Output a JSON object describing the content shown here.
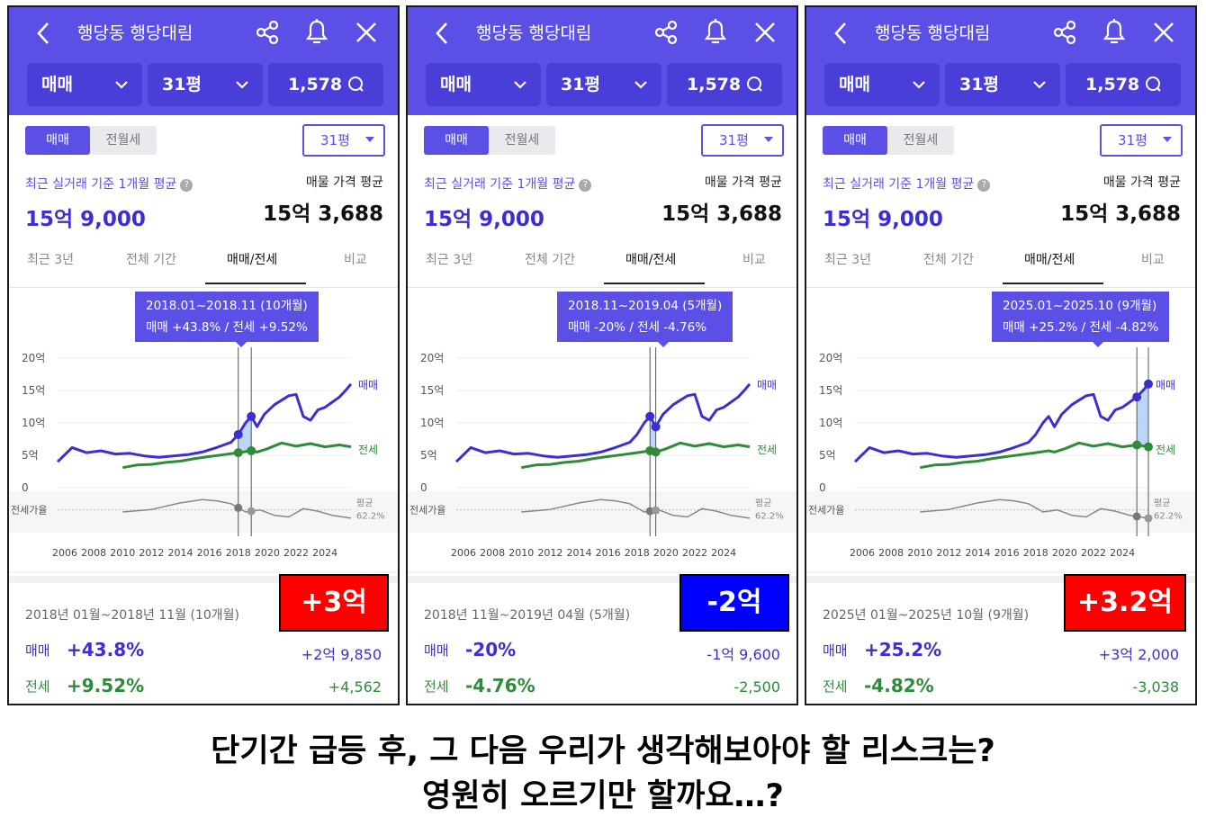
{
  "common": {
    "title": "행당동 행당대림",
    "deal_type": "매매",
    "size": "31평",
    "listing_count": "1,578",
    "seg_sale": "매매",
    "seg_rent": "전월세",
    "size_select": "31평",
    "recent_label": "최근 실거래 기준 1개월 평균",
    "recent_value": "15억 9,000",
    "listing_label": "매물 가격 평균",
    "listing_value": "15억 3,688",
    "tabs": [
      "최근 3년",
      "전체 기간",
      "매매/전세",
      "비교"
    ],
    "y_ticks": [
      "20억",
      "15억",
      "10억",
      "5억",
      "0"
    ],
    "x_ticks": [
      "2006",
      "2008",
      "2010",
      "2012",
      "2014",
      "2016",
      "2018",
      "2020",
      "2022",
      "2024"
    ],
    "series_sale": "매매",
    "series_jeonse": "전세",
    "ratio_label": "전세가율",
    "avg_label": "평균",
    "avg_value": "62.2%",
    "sale_label": "매매",
    "jeonse_label": "전세",
    "help_icon": "?"
  },
  "panels": [
    {
      "tooltip_line1": "2018.01~2018.11 (10개월)",
      "tooltip_line2": "매매 +43.8%  /  전세 +9.52%",
      "period": "2018년 01월~2018년 11월 (10개월)",
      "sale_pct": "+43.8%",
      "sale_amt": "+2억 9,850",
      "jeonse_pct": "+9.52%",
      "jeonse_amt": "+4,562",
      "badge": "+3억",
      "badge_color": "#ff0000"
    },
    {
      "tooltip_line1": "2018.11~2019.04 (5개월)",
      "tooltip_line2": "매매 -20%  /  전세 -4.76%",
      "period": "2018년 11월~2019년 04월 (5개월)",
      "sale_pct": "-20%",
      "sale_amt": "-1억 9,600",
      "jeonse_pct": "-4.76%",
      "jeonse_amt": "-2,500",
      "badge": "-2억",
      "badge_color": "#0000ff"
    },
    {
      "tooltip_line1": "2025.01~2025.10 (9개월)",
      "tooltip_line2": "매매 +25.2%  /  전세 -4.82%",
      "period": "2025년 01월~2025년 10월 (9개월)",
      "sale_pct": "+25.2%",
      "sale_amt": "+3억 2,000",
      "jeonse_pct": "-4.82%",
      "jeonse_amt": "-3,038",
      "badge": "+3.2억",
      "badge_color": "#ff0000"
    }
  ],
  "bottom": {
    "line1": "단기간 급등 후, 그 다음 우리가 생각해보아야 할 리스크는?",
    "line2": "영원히 오르기만 할까요…?"
  },
  "chart_data": {
    "type": "line",
    "x_unit": "year",
    "y_unit": "억",
    "ylim": [
      0,
      20
    ],
    "series": [
      {
        "name": "매매",
        "color": "#3b2fd2",
        "points": [
          [
            2005.5,
            4.0
          ],
          [
            2006.5,
            6.2
          ],
          [
            2007.5,
            5.4
          ],
          [
            2008.5,
            5.7
          ],
          [
            2009.5,
            5.2
          ],
          [
            2010.5,
            5.3
          ],
          [
            2011.5,
            4.9
          ],
          [
            2012.5,
            4.7
          ],
          [
            2013.5,
            4.9
          ],
          [
            2014.5,
            5.1
          ],
          [
            2015.5,
            5.5
          ],
          [
            2016.5,
            6.2
          ],
          [
            2017.5,
            7.0
          ],
          [
            2018.0,
            8.2
          ],
          [
            2018.5,
            10.0
          ],
          [
            2018.9,
            11.0
          ],
          [
            2019.3,
            9.4
          ],
          [
            2019.8,
            11.3
          ],
          [
            2020.5,
            12.8
          ],
          [
            2021.5,
            14.2
          ],
          [
            2022.0,
            14.4
          ],
          [
            2022.5,
            11.0
          ],
          [
            2023.0,
            10.4
          ],
          [
            2023.5,
            12.0
          ],
          [
            2024.0,
            12.4
          ],
          [
            2024.5,
            13.2
          ],
          [
            2025.0,
            14.0
          ],
          [
            2025.5,
            15.2
          ],
          [
            2025.8,
            16.0
          ]
        ]
      },
      {
        "name": "전세",
        "color": "#2f8a3a",
        "points": [
          [
            2010.0,
            3.1
          ],
          [
            2011.0,
            3.5
          ],
          [
            2012.0,
            3.6
          ],
          [
            2013.0,
            3.9
          ],
          [
            2014.0,
            4.1
          ],
          [
            2015.0,
            4.5
          ],
          [
            2016.0,
            4.8
          ],
          [
            2017.0,
            5.1
          ],
          [
            2018.0,
            5.4
          ],
          [
            2018.9,
            5.7
          ],
          [
            2019.3,
            5.5
          ],
          [
            2020.0,
            6.0
          ],
          [
            2021.0,
            6.9
          ],
          [
            2022.0,
            6.4
          ],
          [
            2023.0,
            6.8
          ],
          [
            2024.0,
            6.3
          ],
          [
            2025.0,
            6.6
          ],
          [
            2025.8,
            6.3
          ]
        ]
      },
      {
        "name": "전세가율",
        "color": "#888888",
        "points": [
          [
            2010.0,
            0.5
          ],
          [
            2012.0,
            0.56
          ],
          [
            2014.0,
            0.72
          ],
          [
            2015.5,
            0.8
          ],
          [
            2016.5,
            0.77
          ],
          [
            2017.5,
            0.7
          ],
          [
            2018.5,
            0.5
          ],
          [
            2019.5,
            0.55
          ],
          [
            2020.5,
            0.42
          ],
          [
            2021.5,
            0.38
          ],
          [
            2022.5,
            0.58
          ],
          [
            2023.5,
            0.52
          ],
          [
            2024.5,
            0.42
          ],
          [
            2025.8,
            0.35
          ]
        ]
      }
    ],
    "ranges": [
      {
        "start": 2018.0,
        "end": 2018.9
      },
      {
        "start": 2018.9,
        "end": 2019.3
      },
      {
        "start": 2025.0,
        "end": 2025.8
      }
    ]
  }
}
